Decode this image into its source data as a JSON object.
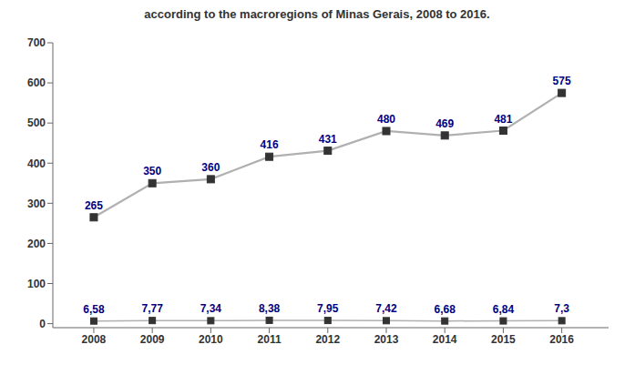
{
  "chart_data": {
    "type": "line",
    "title": "according to the macroregions of Minas Gerais, 2008 to 2016.",
    "x": [
      2008,
      2009,
      2010,
      2011,
      2012,
      2013,
      2014,
      2015,
      2016
    ],
    "xlim": [
      2007.3,
      2016.8
    ],
    "xticks": [
      2008,
      2009,
      2010,
      2011,
      2012,
      2013,
      2014,
      2015,
      2016
    ],
    "ylim": [
      -10,
      700
    ],
    "yticks": [
      0,
      100,
      200,
      300,
      400,
      500,
      600,
      700
    ],
    "grid": false,
    "data_labels": true,
    "series": [
      {
        "color": "#b0b0b0",
        "marker": "square",
        "values": [
          265,
          350,
          360,
          416,
          431,
          480,
          469,
          481,
          575
        ]
      },
      {
        "color": "#b0b0b0",
        "marker": "square",
        "values": [
          6.58,
          7.77,
          7.34,
          8.38,
          7.95,
          7.42,
          6.68,
          6.84,
          7.3
        ],
        "value_labels": [
          "6,58",
          "7,77",
          "7,34",
          "8,38",
          "7,95",
          "7,42",
          "6,68",
          "6,84",
          "7,3"
        ]
      }
    ]
  }
}
